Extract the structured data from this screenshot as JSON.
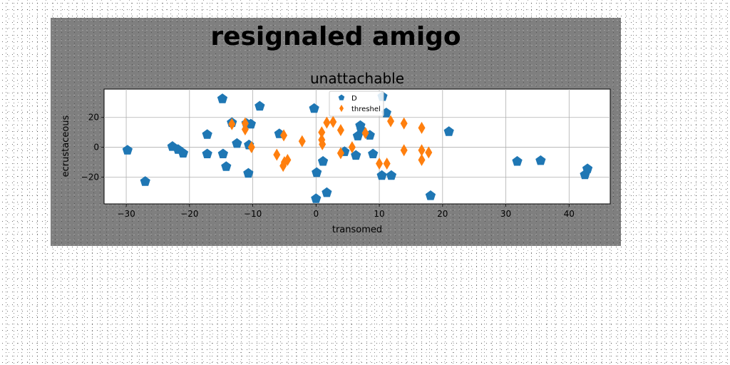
{
  "chart_data": {
    "type": "scatter",
    "suptitle": "resignaled amigo",
    "title": "unattachable",
    "xlabel": "transomed",
    "ylabel": "ecrustaceous",
    "xlim": [
      -33.5,
      46.5
    ],
    "ylim": [
      -38,
      39
    ],
    "xticks": [
      -30,
      -20,
      -10,
      0,
      10,
      20,
      30,
      40
    ],
    "yticks": [
      -20,
      0,
      20
    ],
    "grid": true,
    "legend_position": "top-center",
    "background": "#7f7f7f",
    "series": [
      {
        "name": "D",
        "marker": "pentagon",
        "color": "#1f77b4",
        "points": [
          [
            -29.8,
            -2
          ],
          [
            -27,
            -23
          ],
          [
            -22.7,
            0.5
          ],
          [
            -21.8,
            -1.5
          ],
          [
            -21,
            -4
          ],
          [
            -17.2,
            8.5
          ],
          [
            -17.2,
            -4.5
          ],
          [
            -14.8,
            32.5
          ],
          [
            -14.7,
            -4.5
          ],
          [
            -14.2,
            -13
          ],
          [
            -13.3,
            16.5
          ],
          [
            -12.5,
            2.5
          ],
          [
            -11,
            16
          ],
          [
            -10.7,
            -17.5
          ],
          [
            -10.6,
            1.5
          ],
          [
            -10.3,
            15.5
          ],
          [
            -8.9,
            27.5
          ],
          [
            -5.8,
            9
          ],
          [
            -0.3,
            26
          ],
          [
            0.1,
            -17
          ],
          [
            0,
            -34.5
          ],
          [
            1.1,
            -9.5
          ],
          [
            1.7,
            -30.5
          ],
          [
            4.5,
            -3
          ],
          [
            6.3,
            -5.5
          ],
          [
            6.6,
            7.5
          ],
          [
            7,
            14.5
          ],
          [
            7.2,
            11.5
          ],
          [
            8.5,
            8
          ],
          [
            9,
            -4.5
          ],
          [
            10.5,
            34
          ],
          [
            10.4,
            -19
          ],
          [
            11.1,
            23
          ],
          [
            11.9,
            -19
          ],
          [
            18.1,
            -32.5
          ],
          [
            21,
            10.5
          ],
          [
            31.8,
            -9.5
          ],
          [
            35.5,
            -9
          ],
          [
            42.5,
            -18.5
          ],
          [
            42.9,
            -14.5
          ]
        ]
      },
      {
        "name": "threshel",
        "marker": "diamond",
        "color": "#ff7f0e",
        "points": [
          [
            -13.3,
            15.5
          ],
          [
            -11.2,
            16
          ],
          [
            -11.2,
            12
          ],
          [
            -10.2,
            0
          ],
          [
            -6.2,
            -5
          ],
          [
            -5.1,
            8
          ],
          [
            -5.2,
            -12.5
          ],
          [
            -5,
            -10
          ],
          [
            -4.5,
            -8.5
          ],
          [
            -2.2,
            4
          ],
          [
            0.9,
            10
          ],
          [
            0.9,
            5
          ],
          [
            1,
            2
          ],
          [
            1.7,
            16.5
          ],
          [
            2.7,
            17
          ],
          [
            3.9,
            11.5
          ],
          [
            3.9,
            -4
          ],
          [
            5.7,
            0
          ],
          [
            7.8,
            9.5
          ],
          [
            10,
            -11
          ],
          [
            11.2,
            -11
          ],
          [
            11.8,
            17.5
          ],
          [
            13.9,
            16
          ],
          [
            13.9,
            -2
          ],
          [
            16.7,
            13
          ],
          [
            16.7,
            -2
          ],
          [
            16.7,
            -8.5
          ],
          [
            17.8,
            -3.5
          ]
        ]
      }
    ]
  }
}
